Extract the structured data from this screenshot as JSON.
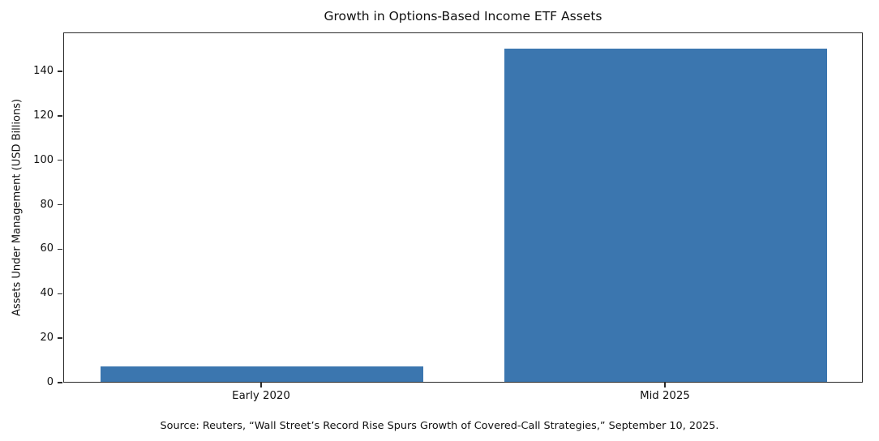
{
  "chart_data": {
    "type": "bar",
    "title": "Growth in Options-Based Income ETF Assets",
    "categories": [
      "Early 2020",
      "Mid 2025"
    ],
    "values": [
      7,
      150
    ],
    "xlabel": "",
    "ylabel": "Assets Under Management (USD Billions)",
    "yticks": [
      0,
      20,
      40,
      60,
      80,
      100,
      120,
      140
    ],
    "ylim": [
      0,
      157.5
    ],
    "bar_color": "#3b76af",
    "grid": false,
    "legend_position": "none",
    "source_note": "Source: Reuters, “Wall Street’s Record Rise Spurs Growth of Covered-Call Strategies,” September 10, 2025."
  }
}
